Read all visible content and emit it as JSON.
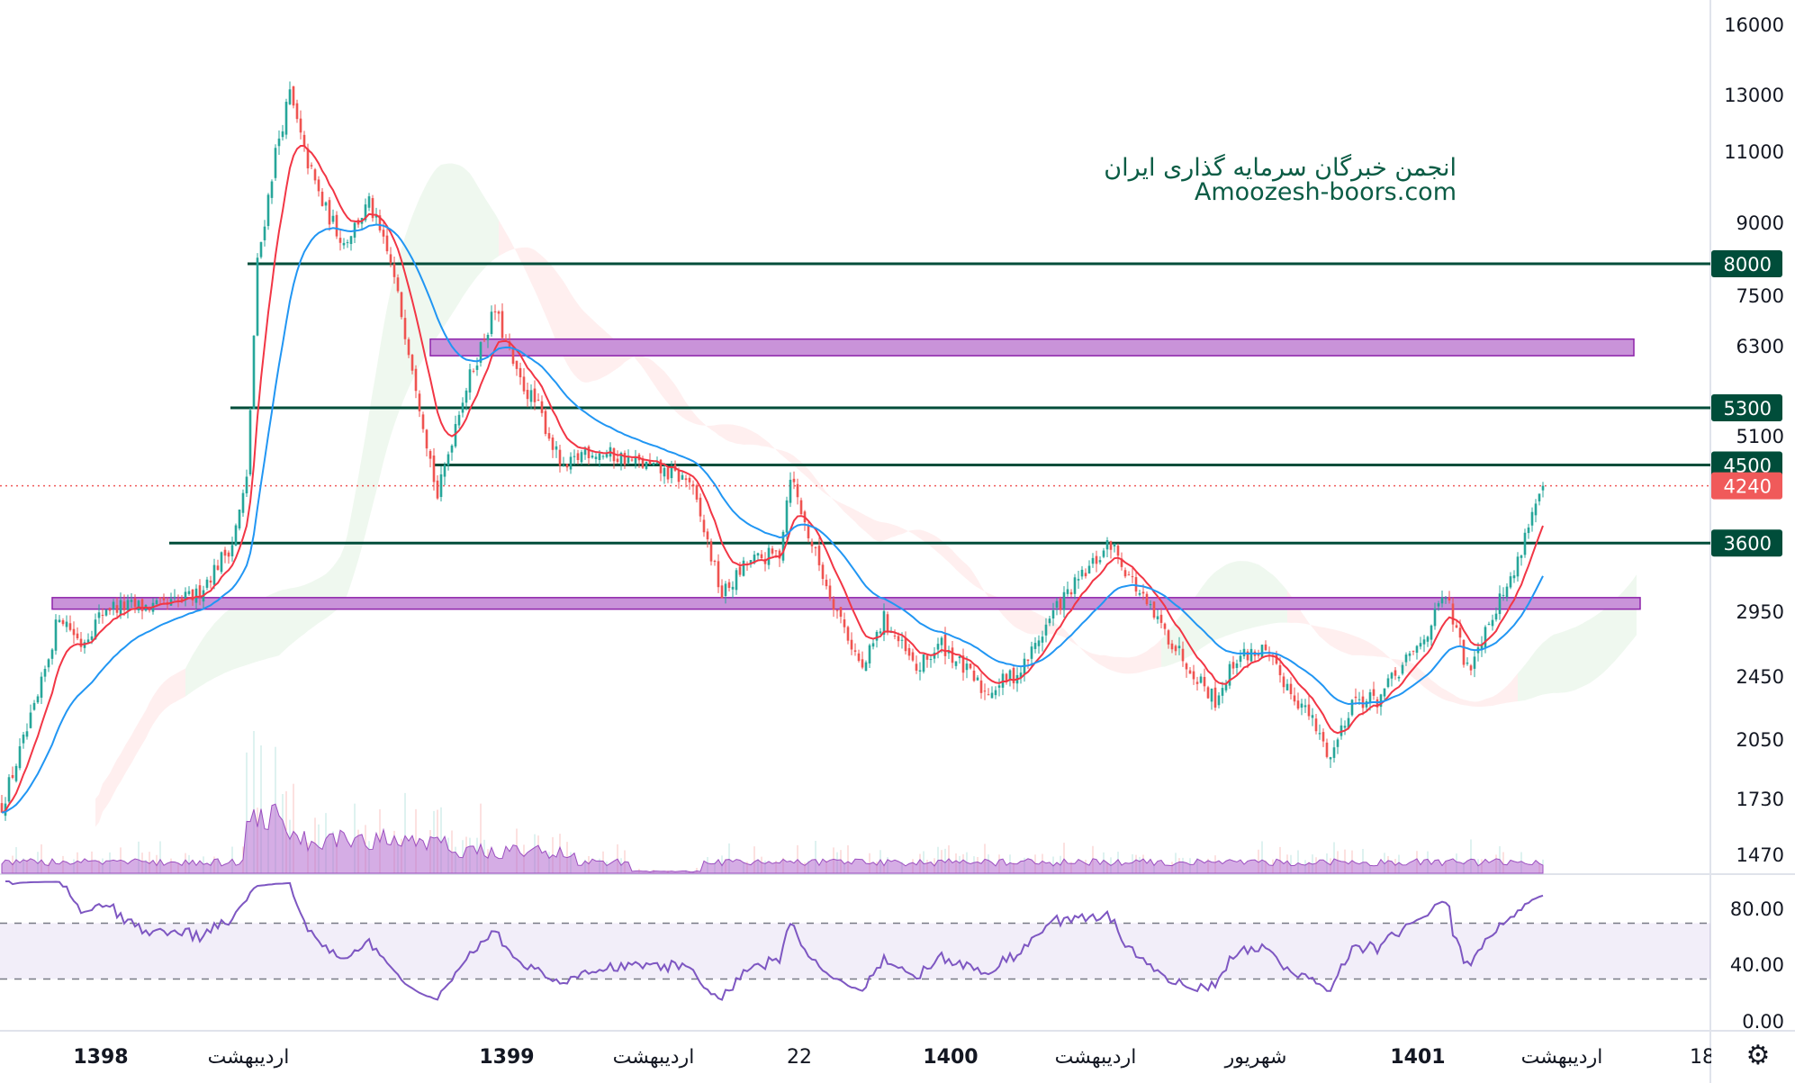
{
  "chart_data": {
    "type": "candlestick",
    "title": "",
    "scale": "log",
    "price_axis_ticks": [
      "16000",
      "13000",
      "11000",
      "9000",
      "7500",
      "6300",
      "5100",
      "2950",
      "2450",
      "2050",
      "1730",
      "1470"
    ],
    "rsi_axis_ticks": [
      "80.00",
      "40.00",
      "0.00"
    ],
    "time_axis_labels": [
      "1398",
      "اردیبهشت",
      "1399",
      "اردیبهشت",
      "22",
      "1400",
      "اردیبهشت",
      "شهریور",
      "1401",
      "اردیبهشت",
      "18"
    ],
    "close_path_keypoints": [
      [
        0,
        1700
      ],
      [
        10,
        2300
      ],
      [
        16,
        2950
      ],
      [
        22,
        2700
      ],
      [
        29,
        3000
      ],
      [
        45,
        3000
      ],
      [
        54,
        3100
      ],
      [
        64,
        3600
      ],
      [
        68,
        4300
      ],
      [
        71,
        8000
      ],
      [
        76,
        11000
      ],
      [
        80,
        13000
      ],
      [
        84,
        11000
      ],
      [
        89,
        9500
      ],
      [
        95,
        8500
      ],
      [
        102,
        9500
      ],
      [
        108,
        8000
      ],
      [
        114,
        6000
      ],
      [
        121,
        4100
      ],
      [
        127,
        5300
      ],
      [
        134,
        6500
      ],
      [
        137,
        7000
      ],
      [
        143,
        5800
      ],
      [
        149,
        5300
      ],
      [
        156,
        4400
      ],
      [
        162,
        4700
      ],
      [
        172,
        4600
      ],
      [
        191,
        4300
      ],
      [
        196,
        3600
      ],
      [
        200,
        3100
      ],
      [
        207,
        3400
      ],
      [
        216,
        3500
      ],
      [
        219,
        4400
      ],
      [
        223,
        3800
      ],
      [
        229,
        3200
      ],
      [
        239,
        2500
      ],
      [
        245,
        2900
      ],
      [
        254,
        2500
      ],
      [
        261,
        2700
      ],
      [
        273,
        2350
      ],
      [
        283,
        2500
      ],
      [
        293,
        3000
      ],
      [
        308,
        3600
      ],
      [
        318,
        3000
      ],
      [
        328,
        2600
      ],
      [
        337,
        2300
      ],
      [
        343,
        2600
      ],
      [
        350,
        2650
      ],
      [
        363,
        2200
      ],
      [
        369,
        1950
      ],
      [
        375,
        2300
      ],
      [
        382,
        2300
      ],
      [
        394,
        2700
      ],
      [
        401,
        3100
      ],
      [
        407,
        2500
      ],
      [
        413,
        2900
      ],
      [
        420,
        3300
      ],
      [
        423,
        3700
      ],
      [
        428,
        4240
      ]
    ],
    "last_price": "4240",
    "horizontal_levels": [
      {
        "label": "8000",
        "value": 8000
      },
      {
        "label": "5300",
        "value": 5300
      },
      {
        "label": "4500",
        "value": 4500
      },
      {
        "label": "3600",
        "value": 3600
      }
    ],
    "zones": [
      {
        "from": 6150,
        "to": 6450
      },
      {
        "from": 2980,
        "to": 3080
      }
    ],
    "indicators": [
      "EMA fast (red)",
      "EMA slow (blue)",
      "Ichimoku cloud",
      "Volume",
      "RSI 14"
    ],
    "rsi_band": [
      30,
      70
    ],
    "colors": {
      "up": "#26a69a",
      "down": "#ef5350",
      "ema_fast": "#f23645",
      "ema_slow": "#2196f3",
      "level": "#004d3a",
      "zone": "#c993d9",
      "volume": "#b36ad0",
      "rsi": "#7e57c2",
      "last": "#f05a5a"
    }
  },
  "watermark": {
    "line1": "انجمن خبرگان سرمایه گذاری ایران",
    "line2": "Amoozesh-boors.com"
  },
  "settings_icon": "⚙"
}
